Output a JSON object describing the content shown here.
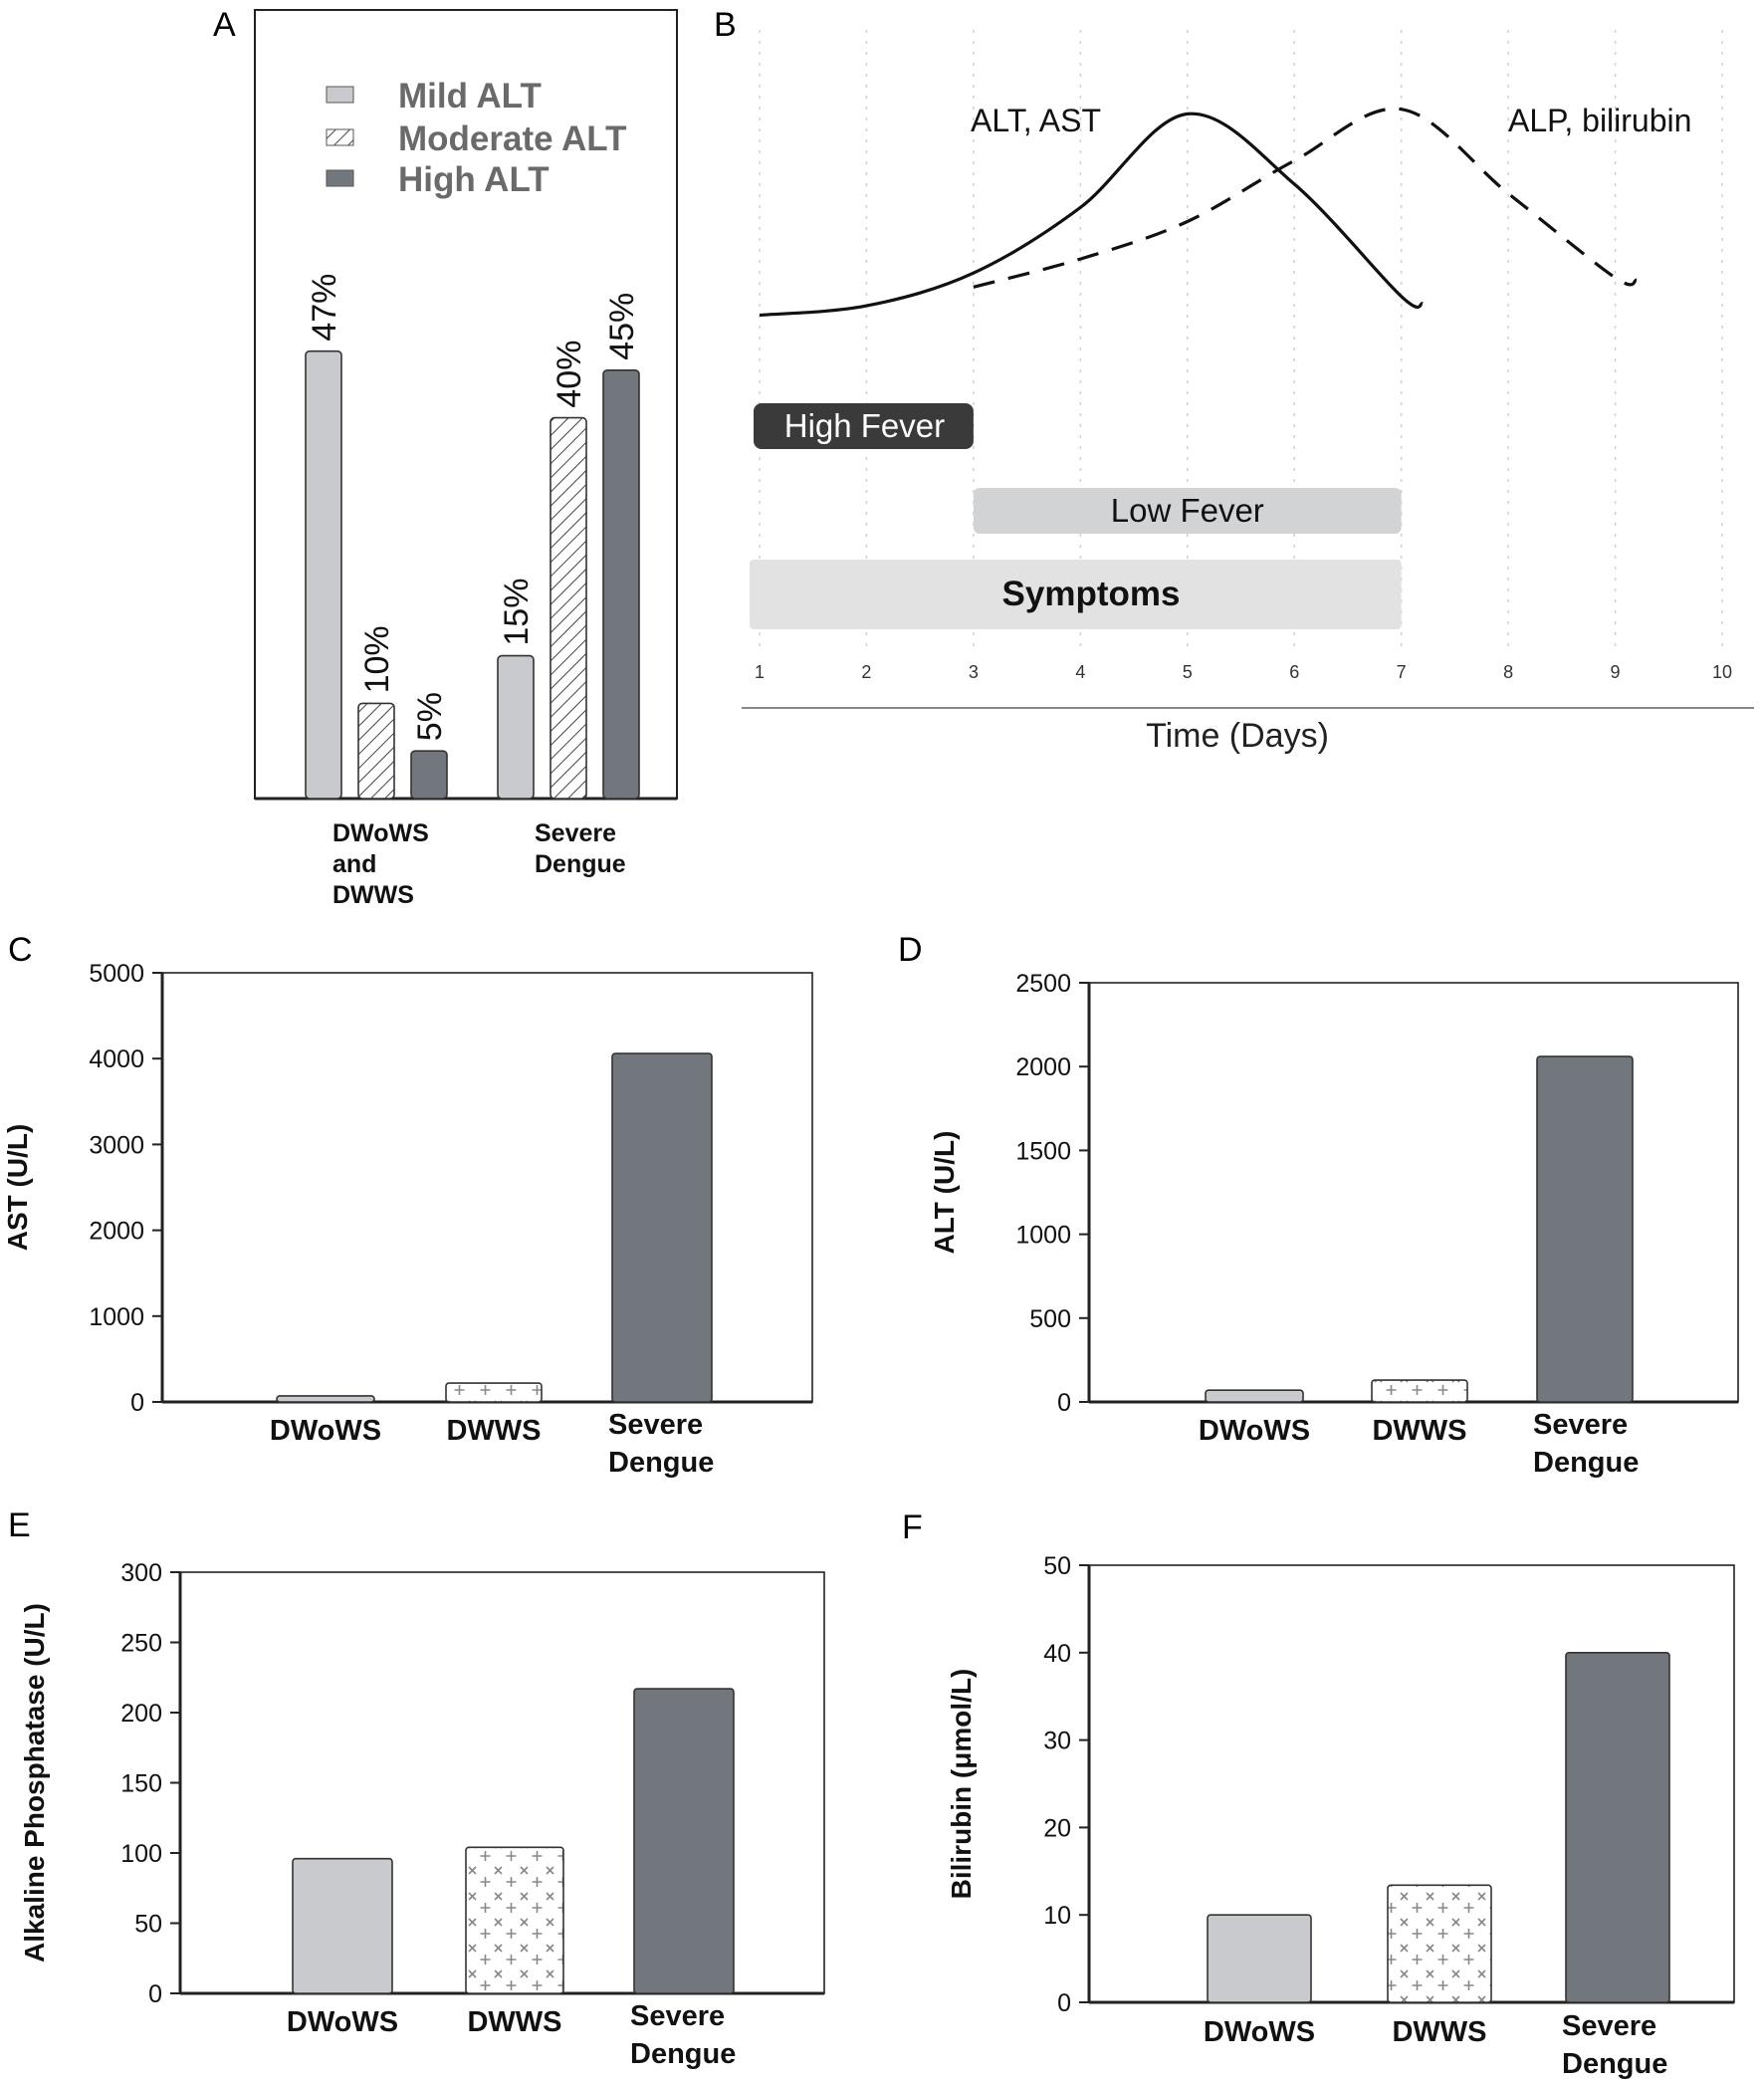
{
  "colors": {
    "mild": "#c8cacd",
    "high": "#72767d",
    "axis": "#222222",
    "label": "#6a6a6a",
    "high_fever_bg": "#3a3a3a",
    "low_fever_bg": "#d2d3d5",
    "symptoms_bg": "#e2e2e2",
    "grid": "#d0d0d0"
  },
  "chart_data": [
    {
      "panel": "A",
      "type": "bar",
      "categories": [
        "DWoWS\nand\nDWWS",
        "Severe\nDengue"
      ],
      "series": [
        {
          "name": "Mild ALT",
          "pattern": "solid-light",
          "values": [
            47,
            15
          ],
          "labels": [
            "47%",
            "15%"
          ]
        },
        {
          "name": "Moderate ALT",
          "pattern": "hatched",
          "values": [
            10,
            40
          ],
          "labels": [
            "10%",
            "40%"
          ]
        },
        {
          "name": "High ALT",
          "pattern": "solid-dark",
          "values": [
            5,
            45
          ],
          "labels": [
            "5%",
            "45%"
          ]
        }
      ],
      "ylim": [
        0,
        55
      ],
      "legend": "top",
      "xlabel": "",
      "ylabel": ""
    },
    {
      "panel": "B",
      "type": "line",
      "xlabel": "Time (Days)",
      "x_ticks": [
        "1",
        "2",
        "3",
        "4",
        "5",
        "6",
        "7",
        "8",
        "9",
        "10"
      ],
      "xlim": [
        1,
        10
      ],
      "series": [
        {
          "name": "ALT, AST",
          "style": "solid",
          "x": [
            1,
            2,
            3,
            4,
            5,
            6,
            7,
            7.2
          ],
          "y": [
            0.1,
            0.14,
            0.28,
            0.56,
            0.96,
            0.66,
            0.18,
            0.15
          ]
        },
        {
          "name": "ALP, bilirubin",
          "style": "dashed",
          "x": [
            3,
            4,
            5,
            6,
            7,
            8,
            9,
            9.2
          ],
          "y": [
            0.22,
            0.34,
            0.5,
            0.76,
            0.98,
            0.62,
            0.26,
            0.25
          ]
        }
      ],
      "annotations": {
        "curve1": "ALT, AST",
        "curve2": "ALP, bilirubin"
      },
      "phases": [
        {
          "label": "High Fever",
          "start": 1,
          "end": 3
        },
        {
          "label": "Low Fever",
          "start": 3,
          "end": 7
        },
        {
          "label": "Symptoms",
          "start": 1,
          "end": 7
        }
      ]
    },
    {
      "panel": "C",
      "type": "bar",
      "categories": [
        "DWoWS",
        "DWWS",
        "Severe\nDengue"
      ],
      "values": [
        70,
        220,
        4060
      ],
      "patterns": [
        "solid-light",
        "crosses",
        "solid-dark"
      ],
      "ylabel": "AST (U/L)",
      "ylim": [
        0,
        5000
      ],
      "yticks": [
        0,
        1000,
        2000,
        3000,
        4000,
        5000
      ]
    },
    {
      "panel": "D",
      "type": "bar",
      "categories": [
        "DWoWS",
        "DWWS",
        "Severe\nDengue"
      ],
      "values": [
        70,
        130,
        2060
      ],
      "patterns": [
        "solid-light",
        "crosses",
        "solid-dark"
      ],
      "ylabel": "ALT (U/L)",
      "ylim": [
        0,
        2500
      ],
      "yticks": [
        0,
        500,
        1000,
        1500,
        2000,
        2500
      ]
    },
    {
      "panel": "E",
      "type": "bar",
      "categories": [
        "DWoWS",
        "DWWS",
        "Severe\nDengue"
      ],
      "values": [
        96,
        104,
        217
      ],
      "patterns": [
        "solid-light",
        "crosses",
        "solid-dark"
      ],
      "ylabel": "Alkaline Phosphatase (U/L)",
      "ylim": [
        0,
        300
      ],
      "yticks": [
        0,
        50,
        100,
        150,
        200,
        250,
        300
      ]
    },
    {
      "panel": "F",
      "type": "bar",
      "categories": [
        "DWoWS",
        "DWWS",
        "Severe\nDengue"
      ],
      "values": [
        10,
        13.4,
        40
      ],
      "patterns": [
        "solid-light",
        "crosses",
        "solid-dark"
      ],
      "ylabel": "Bilirubin (μmol/L)",
      "ylim": [
        0,
        50
      ],
      "yticks": [
        0,
        10,
        20,
        30,
        40,
        50
      ]
    }
  ]
}
